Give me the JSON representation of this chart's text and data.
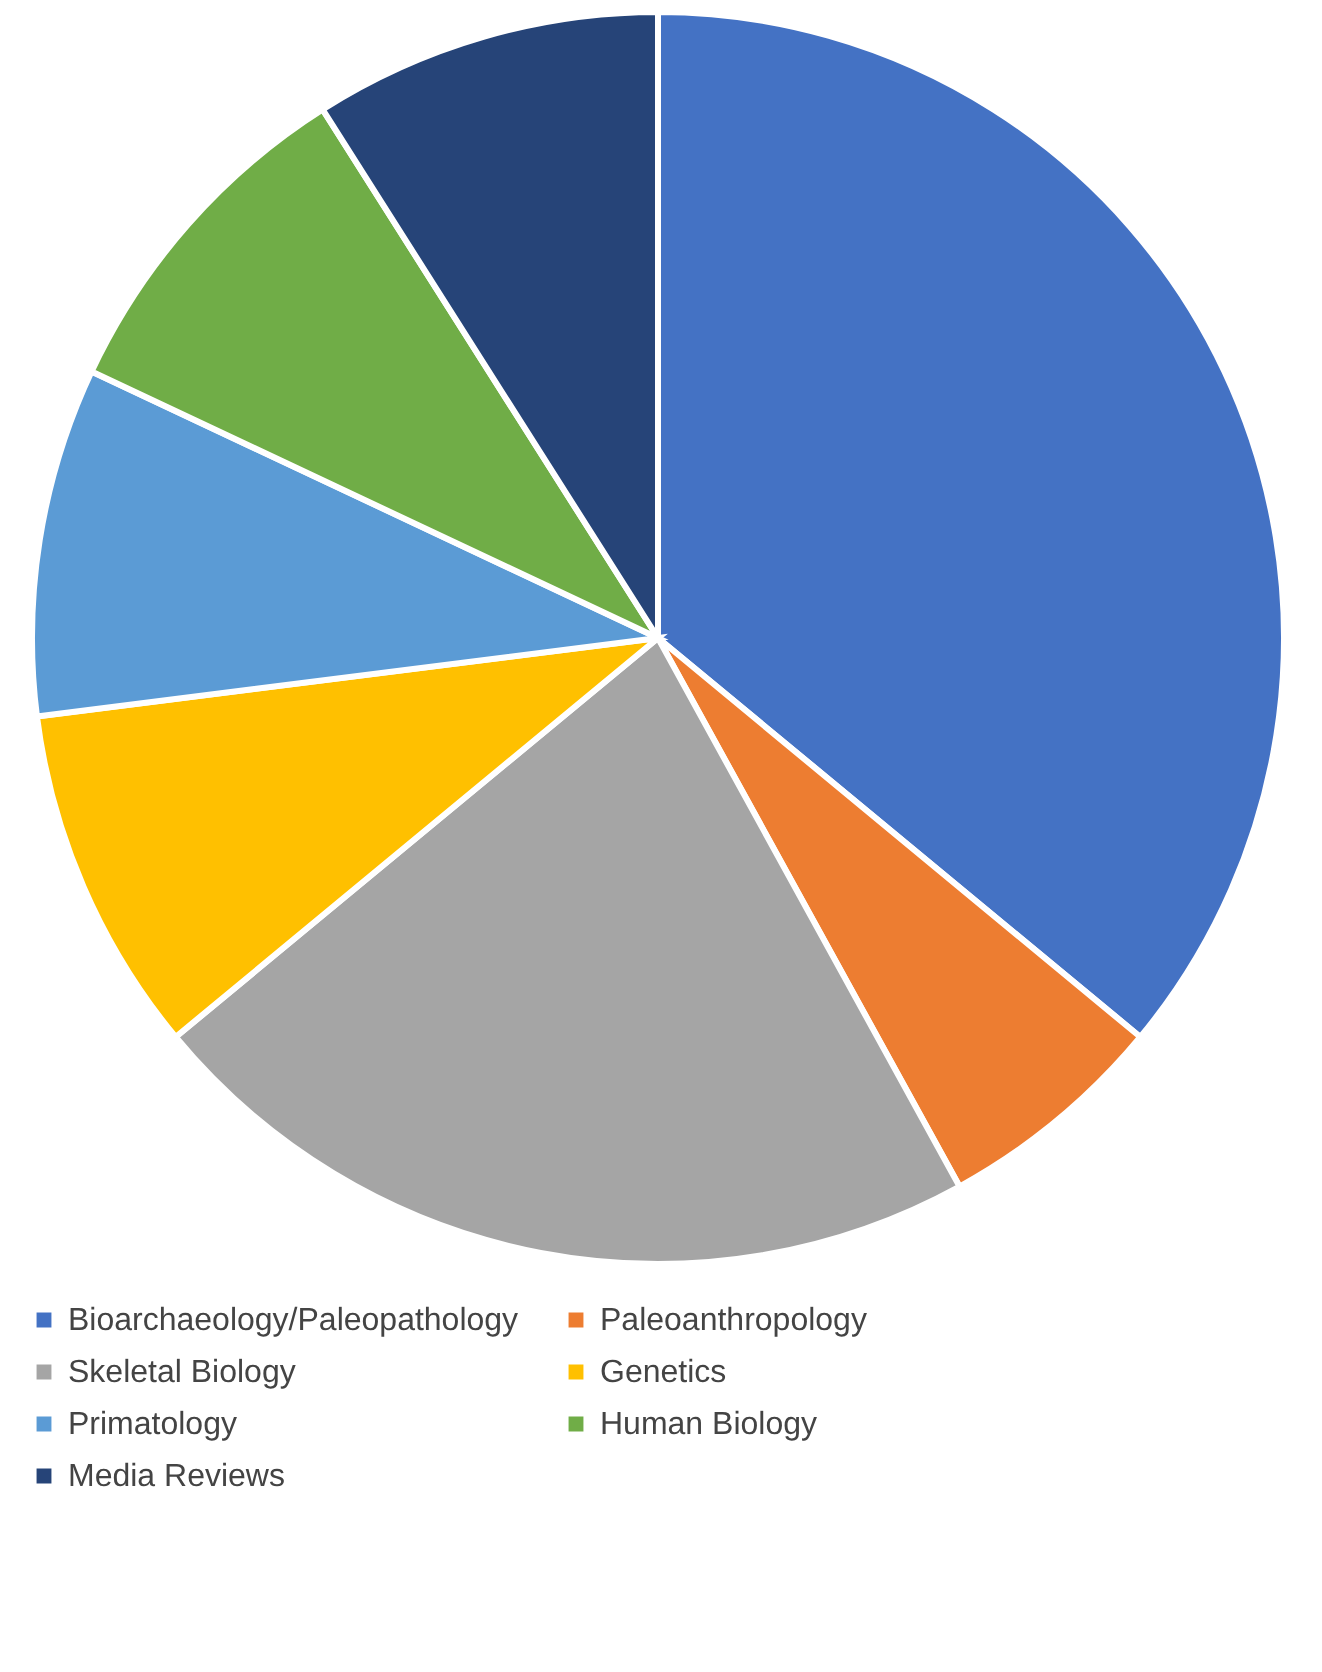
{
  "chart_data": {
    "type": "pie",
    "categories": [
      "Bioarchaeology/Paleopathology",
      "Paleoanthropology",
      "Skeletal Biology",
      "Genetics",
      "Primatology",
      "Human Biology",
      "Media Reviews"
    ],
    "values": [
      36,
      6,
      22,
      9,
      9,
      9,
      9
    ],
    "colors": [
      "#4472c4",
      "#ed7d31",
      "#a5a5a5",
      "#ffc000",
      "#5b9bd5",
      "#70ad47",
      "#264478"
    ],
    "legend": "bottom"
  }
}
